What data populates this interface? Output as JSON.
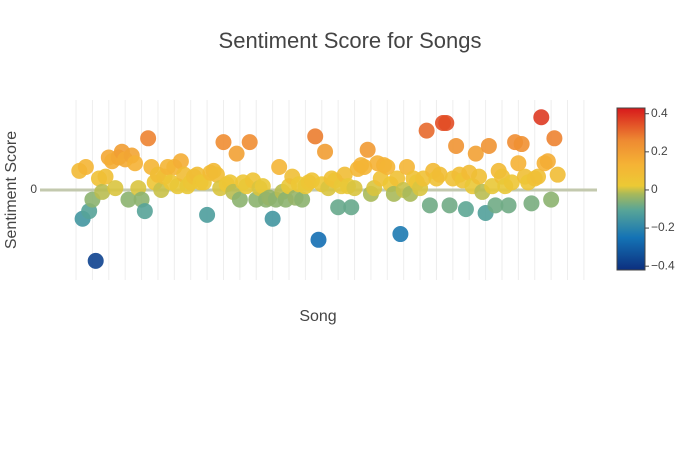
{
  "chart_data": {
    "type": "scatter",
    "title": "Sentiment Score for Songs",
    "x_label": "Song",
    "y_label": "Sentiment Score",
    "x": [
      1,
      2,
      3,
      4,
      5,
      6,
      7,
      8,
      9,
      10,
      11,
      12,
      13,
      14,
      15,
      16,
      17,
      18,
      19,
      20,
      21,
      22,
      23,
      24,
      25,
      26,
      27,
      28,
      29,
      30,
      31,
      32,
      33,
      34,
      35,
      36,
      37,
      38,
      39,
      40,
      41,
      42,
      43,
      44,
      45,
      46,
      47,
      48,
      49,
      50,
      51,
      52,
      53,
      54,
      55,
      56,
      57,
      58,
      59,
      60,
      61,
      62,
      63,
      64,
      65,
      66,
      67,
      68,
      69,
      70,
      71,
      72,
      73,
      74,
      75,
      76,
      77,
      78,
      79,
      80,
      81,
      82,
      83,
      84,
      85,
      86,
      87,
      88,
      89,
      90,
      91,
      92,
      93,
      94,
      95,
      96,
      97,
      98,
      99,
      100,
      101,
      102,
      103,
      104,
      105,
      106,
      107,
      108,
      109,
      110,
      111,
      112,
      113,
      114,
      115,
      116,
      117,
      118,
      119,
      120,
      121,
      122,
      123,
      124,
      125,
      126,
      127,
      128,
      129,
      130,
      131,
      132,
      133,
      134,
      135,
      136,
      137,
      138,
      139,
      140,
      141,
      142,
      143,
      144,
      145,
      146,
      147
    ],
    "values": [
      0.1,
      -0.15,
      0.12,
      -0.11,
      -0.05,
      -0.37,
      0.06,
      -0.01,
      0.07,
      0.17,
      0.15,
      0.01,
      0.17,
      0.2,
      0.16,
      -0.05,
      0.18,
      0.14,
      0.01,
      -0.05,
      -0.11,
      0.27,
      0.12,
      0.04,
      0.08,
      0.0,
      0.07,
      0.12,
      0.04,
      0.12,
      0.02,
      0.15,
      0.08,
      0.02,
      0.04,
      0.07,
      0.08,
      0.04,
      0.04,
      -0.13,
      0.09,
      0.1,
      0.08,
      0.01,
      0.25,
      0.03,
      0.04,
      -0.01,
      0.19,
      -0.05,
      0.04,
      0.02,
      0.25,
      0.05,
      -0.05,
      0.01,
      0.02,
      -0.05,
      -0.04,
      -0.15,
      -0.05,
      0.12,
      -0.01,
      -0.05,
      0.02,
      0.07,
      -0.04,
      0.03,
      -0.05,
      0.02,
      0.04,
      0.05,
      0.28,
      -0.26,
      0.03,
      0.2,
      0.01,
      0.06,
      0.05,
      -0.09,
      0.02,
      0.08,
      0.02,
      -0.09,
      0.01,
      0.11,
      0.13,
      0.12,
      0.21,
      -0.02,
      0.01,
      0.14,
      0.06,
      0.13,
      0.12,
      0.03,
      -0.02,
      0.06,
      -0.23,
      0.0,
      0.12,
      -0.02,
      0.06,
      0.04,
      0.01,
      0.06,
      0.31,
      -0.08,
      0.1,
      0.06,
      0.08,
      0.35,
      0.35,
      -0.08,
      0.06,
      0.23,
      0.08,
      0.05,
      -0.1,
      0.09,
      0.02,
      0.19,
      0.07,
      -0.01,
      -0.12,
      0.23,
      0.02,
      -0.08,
      0.1,
      0.07,
      0.02,
      -0.08,
      0.04,
      0.25,
      0.14,
      0.24,
      0.07,
      0.04,
      -0.07,
      0.06,
      0.07,
      0.38,
      0.14,
      0.15,
      -0.05,
      0.27,
      0.08
    ],
    "xlim": [
      -11,
      159
    ],
    "xticks": [
      0,
      5,
      10,
      15,
      20,
      25,
      30,
      35,
      40,
      45,
      50,
      55,
      60,
      65,
      70,
      75,
      80,
      85,
      90,
      95,
      100,
      105,
      110,
      115,
      120,
      125,
      130,
      135,
      140,
      145,
      150,
      155
    ],
    "xtick_labels": false,
    "ylim": [
      -0.47,
      0.47
    ],
    "yticks": [
      0
    ],
    "grid": true,
    "zero_line": true,
    "marker_opacity": 0.9,
    "colorscale": [
      [
        0,
        "#0c2f7f"
      ],
      [
        0.2,
        "#1473b5"
      ],
      [
        0.37,
        "#58a597"
      ],
      [
        0.47,
        "#a8b95a"
      ],
      [
        0.52,
        "#ecc935"
      ],
      [
        0.65,
        "#f5b335"
      ],
      [
        0.8,
        "#ee8a32"
      ],
      [
        1,
        "#d7191c"
      ]
    ],
    "cmin": -0.42,
    "cmax": 0.43,
    "colorbar_ticks": [
      {
        "value": -0.4,
        "label": "−0.4"
      },
      {
        "value": -0.2,
        "label": "−0.2"
      },
      0,
      0.2,
      0.4
    ]
  }
}
